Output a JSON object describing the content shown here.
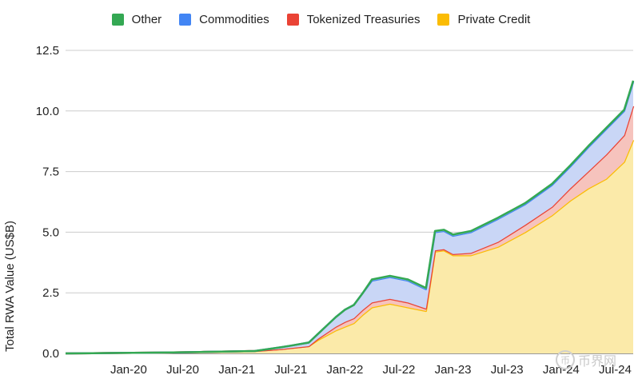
{
  "chart_data": {
    "type": "area",
    "stacked": true,
    "title": "",
    "xlabel": "",
    "ylabel": "Total RWA Value (US$B)",
    "ylim": [
      0,
      12.5
    ],
    "yticks": [
      "0.0",
      "2.5",
      "5.0",
      "7.5",
      "10.0",
      "12.5"
    ],
    "xticks": [
      "Jan-20",
      "Jul-20",
      "Jan-21",
      "Jul-21",
      "Jan-22",
      "Jul-22",
      "Jan-23",
      "Jul-23",
      "Jan-24",
      "Jul-24"
    ],
    "grid": "horizontal",
    "legend_position": "top",
    "x": [
      "2019-06",
      "2019-09",
      "2019-12",
      "2020-03",
      "2020-06",
      "2020-09",
      "2020-12",
      "2021-03",
      "2021-06",
      "2021-07",
      "2021-09",
      "2021-10",
      "2021-11",
      "2021-12",
      "2022-01",
      "2022-02",
      "2022-03",
      "2022-04",
      "2022-06",
      "2022-08",
      "2022-10",
      "2022-11",
      "2022-12",
      "2023-01",
      "2023-03",
      "2023-06",
      "2023-09",
      "2023-12",
      "2024-02",
      "2024-04",
      "2024-06",
      "2024-08",
      "2024-09"
    ],
    "series": [
      {
        "name": "Private Credit",
        "color": "#fbbc04",
        "values": [
          0.0,
          0.01,
          0.02,
          0.03,
          0.04,
          0.06,
          0.08,
          0.1,
          0.18,
          0.22,
          0.3,
          0.55,
          0.75,
          0.95,
          1.1,
          1.25,
          1.6,
          1.9,
          2.05,
          1.9,
          1.75,
          4.2,
          4.25,
          4.05,
          4.05,
          4.4,
          5.0,
          5.7,
          6.3,
          6.8,
          7.2,
          7.9,
          8.8
        ]
      },
      {
        "name": "Tokenized Treasuries",
        "color": "#ea4335",
        "values": [
          0.0,
          0.0,
          0.0,
          0.0,
          0.0,
          0.0,
          0.0,
          0.0,
          0.0,
          0.0,
          0.0,
          0.05,
          0.1,
          0.15,
          0.2,
          0.2,
          0.2,
          0.2,
          0.2,
          0.2,
          0.1,
          0.05,
          0.05,
          0.05,
          0.1,
          0.2,
          0.3,
          0.35,
          0.5,
          0.7,
          1.0,
          1.1,
          1.4
        ]
      },
      {
        "name": "Commodities",
        "color": "#4285f4",
        "values": [
          0.0,
          0.0,
          0.0,
          0.0,
          0.0,
          0.0,
          0.0,
          0.0,
          0.08,
          0.1,
          0.15,
          0.2,
          0.3,
          0.4,
          0.5,
          0.55,
          0.7,
          0.9,
          0.9,
          0.9,
          0.8,
          0.75,
          0.75,
          0.75,
          0.85,
          0.95,
          0.85,
          0.9,
          0.9,
          1.0,
          1.05,
          1.0,
          1.0
        ]
      },
      {
        "name": "Other",
        "color": "#34a853",
        "values": [
          0.0,
          0.0,
          0.0,
          0.0,
          0.0,
          0.0,
          0.0,
          0.0,
          0.0,
          0.0,
          0.0,
          0.0,
          0.0,
          0.0,
          0.0,
          0.0,
          0.0,
          0.05,
          0.05,
          0.05,
          0.05,
          0.05,
          0.05,
          0.05,
          0.05,
          0.05,
          0.05,
          0.05,
          0.05,
          0.05,
          0.05,
          0.05,
          0.05
        ]
      }
    ]
  },
  "legend": [
    {
      "label": "Other",
      "color": "#34a853"
    },
    {
      "label": "Commodities",
      "color": "#4285f4"
    },
    {
      "label": "Tokenized Treasuries",
      "color": "#ea4335"
    },
    {
      "label": "Private Credit",
      "color": "#fbbc04"
    }
  ],
  "watermark": {
    "text": "币界网",
    "icon": "coin-logo-icon",
    "icon_glyph": "币"
  },
  "fill_colors": {
    "Private Credit": "#fbeaa9",
    "Tokenized Treasuries": "#f6c3bd",
    "Commodities": "#c9d6f6",
    "Other": "#c3e6cc"
  }
}
